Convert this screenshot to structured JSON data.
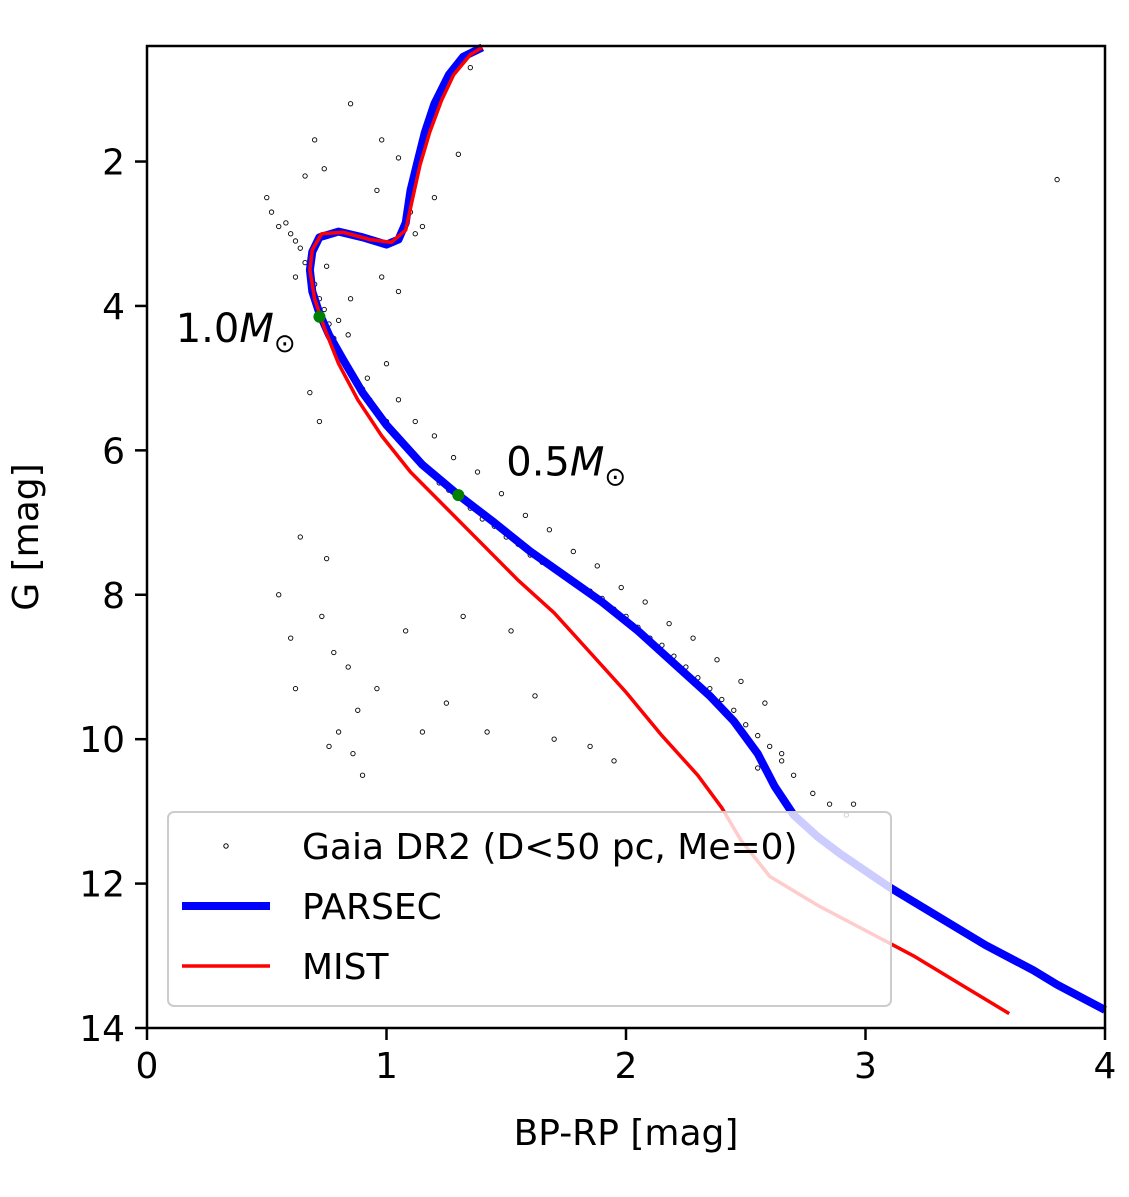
{
  "chart_data": {
    "type": "scatter",
    "title": "",
    "xlabel": "BP-RP [mag]",
    "ylabel": "G [mag]",
    "xlim": [
      0,
      4
    ],
    "ylim": [
      0.4,
      14
    ],
    "y_inverted": true,
    "x_ticks": [
      "0",
      "1",
      "2",
      "3",
      "4"
    ],
    "y_ticks": [
      "2",
      "4",
      "6",
      "8",
      "10",
      "12",
      "14"
    ],
    "grid": false,
    "legend_position": "bottom-left",
    "series": [
      {
        "name": "Gaia DR2 (D<50 pc, Me=0)",
        "kind": "scatter",
        "color": "#000000",
        "points": [
          [
            0.5,
            2.5
          ],
          [
            0.52,
            2.7
          ],
          [
            0.55,
            2.9
          ],
          [
            0.58,
            2.85
          ],
          [
            0.6,
            3.0
          ],
          [
            0.62,
            3.1
          ],
          [
            0.64,
            3.2
          ],
          [
            0.66,
            3.4
          ],
          [
            0.68,
            3.55
          ],
          [
            0.7,
            3.7
          ],
          [
            0.72,
            3.9
          ],
          [
            0.74,
            4.05
          ],
          [
            0.76,
            4.25
          ],
          [
            0.78,
            4.45
          ],
          [
            0.8,
            4.6
          ],
          [
            0.82,
            4.75
          ],
          [
            0.85,
            4.9
          ],
          [
            0.88,
            5.05
          ],
          [
            0.9,
            5.15
          ],
          [
            0.93,
            5.3
          ],
          [
            0.96,
            5.45
          ],
          [
            1.0,
            5.6
          ],
          [
            1.03,
            5.75
          ],
          [
            1.06,
            5.85
          ],
          [
            1.1,
            6.0
          ],
          [
            1.14,
            6.15
          ],
          [
            1.18,
            6.3
          ],
          [
            1.22,
            6.45
          ],
          [
            1.26,
            6.55
          ],
          [
            1.3,
            6.65
          ],
          [
            1.35,
            6.8
          ],
          [
            1.4,
            6.95
          ],
          [
            1.45,
            7.05
          ],
          [
            1.5,
            7.2
          ],
          [
            1.55,
            7.3
          ],
          [
            1.6,
            7.45
          ],
          [
            1.65,
            7.55
          ],
          [
            1.7,
            7.65
          ],
          [
            1.75,
            7.75
          ],
          [
            1.8,
            7.85
          ],
          [
            1.85,
            7.95
          ],
          [
            1.9,
            8.05
          ],
          [
            1.95,
            8.2
          ],
          [
            2.0,
            8.3
          ],
          [
            2.05,
            8.45
          ],
          [
            2.1,
            8.6
          ],
          [
            2.15,
            8.7
          ],
          [
            2.2,
            8.85
          ],
          [
            2.25,
            9.0
          ],
          [
            2.3,
            9.15
          ],
          [
            2.35,
            9.3
          ],
          [
            2.4,
            9.45
          ],
          [
            2.45,
            9.6
          ],
          [
            2.5,
            9.8
          ],
          [
            2.55,
            9.95
          ],
          [
            2.6,
            10.1
          ],
          [
            2.65,
            10.3
          ],
          [
            2.7,
            10.5
          ],
          [
            2.78,
            10.75
          ],
          [
            2.85,
            10.9
          ],
          [
            2.92,
            11.05
          ],
          [
            0.62,
            3.6
          ],
          [
            0.7,
            3.2
          ],
          [
            0.75,
            3.45
          ],
          [
            0.8,
            4.2
          ],
          [
            0.84,
            4.4
          ],
          [
            0.92,
            5.0
          ],
          [
            1.0,
            4.8
          ],
          [
            1.05,
            5.3
          ],
          [
            1.12,
            5.6
          ],
          [
            1.2,
            5.8
          ],
          [
            1.28,
            6.1
          ],
          [
            1.38,
            6.3
          ],
          [
            1.48,
            6.6
          ],
          [
            1.58,
            6.9
          ],
          [
            1.68,
            7.1
          ],
          [
            1.78,
            7.4
          ],
          [
            1.88,
            7.6
          ],
          [
            1.98,
            7.9
          ],
          [
            2.08,
            8.1
          ],
          [
            2.18,
            8.4
          ],
          [
            2.28,
            8.6
          ],
          [
            2.38,
            8.9
          ],
          [
            2.48,
            9.2
          ],
          [
            2.58,
            9.5
          ],
          [
            0.68,
            5.2
          ],
          [
            0.72,
            5.6
          ],
          [
            0.75,
            7.5
          ],
          [
            0.73,
            8.3
          ],
          [
            0.78,
            8.8
          ],
          [
            0.84,
            9.0
          ],
          [
            0.88,
            9.6
          ],
          [
            0.76,
            10.1
          ],
          [
            0.86,
            10.2
          ],
          [
            0.96,
            9.3
          ],
          [
            1.08,
            8.5
          ],
          [
            1.15,
            9.9
          ],
          [
            1.25,
            9.5
          ],
          [
            1.32,
            8.3
          ],
          [
            1.42,
            9.9
          ],
          [
            1.52,
            8.5
          ],
          [
            1.62,
            9.4
          ],
          [
            1.7,
            10.0
          ],
          [
            1.85,
            10.1
          ],
          [
            1.95,
            10.3
          ],
          [
            0.6,
            8.6
          ],
          [
            0.62,
            9.3
          ],
          [
            0.64,
            7.2
          ],
          [
            0.55,
            8.0
          ],
          [
            0.8,
            9.9
          ],
          [
            0.9,
            10.5
          ],
          [
            0.85,
            1.2
          ],
          [
            0.98,
            1.7
          ],
          [
            1.05,
            1.95
          ],
          [
            0.7,
            1.7
          ],
          [
            0.66,
            2.2
          ],
          [
            0.74,
            2.1
          ],
          [
            0.96,
            2.4
          ],
          [
            1.1,
            2.7
          ],
          [
            1.15,
            2.9
          ],
          [
            1.2,
            2.5
          ],
          [
            1.3,
            1.9
          ],
          [
            0.85,
            3.9
          ],
          [
            0.98,
            3.6
          ],
          [
            1.05,
            3.8
          ],
          [
            1.12,
            3.0
          ],
          [
            1.35,
            0.7
          ],
          [
            3.8,
            2.25
          ],
          [
            2.95,
            10.9
          ],
          [
            2.65,
            10.2
          ],
          [
            2.55,
            10.4
          ]
        ]
      },
      {
        "name": "PARSEC",
        "kind": "line",
        "color": "#0000ff",
        "points": [
          [
            4.0,
            13.75
          ],
          [
            3.8,
            13.4
          ],
          [
            3.7,
            13.2
          ],
          [
            3.5,
            12.85
          ],
          [
            3.3,
            12.45
          ],
          [
            3.1,
            12.05
          ],
          [
            2.9,
            11.6
          ],
          [
            2.8,
            11.35
          ],
          [
            2.7,
            11.05
          ],
          [
            2.62,
            10.65
          ],
          [
            2.55,
            10.2
          ],
          [
            2.45,
            9.75
          ],
          [
            2.35,
            9.4
          ],
          [
            2.2,
            8.95
          ],
          [
            2.05,
            8.5
          ],
          [
            1.9,
            8.1
          ],
          [
            1.75,
            7.75
          ],
          [
            1.6,
            7.4
          ],
          [
            1.45,
            7.0
          ],
          [
            1.3,
            6.62
          ],
          [
            1.15,
            6.2
          ],
          [
            1.0,
            5.65
          ],
          [
            0.9,
            5.2
          ],
          [
            0.82,
            4.75
          ],
          [
            0.76,
            4.4
          ],
          [
            0.72,
            4.1
          ],
          [
            0.69,
            3.8
          ],
          [
            0.68,
            3.5
          ],
          [
            0.69,
            3.25
          ],
          [
            0.72,
            3.05
          ],
          [
            0.8,
            2.97
          ],
          [
            0.9,
            3.05
          ],
          [
            1.0,
            3.15
          ],
          [
            1.05,
            3.08
          ],
          [
            1.08,
            2.85
          ],
          [
            1.1,
            2.4
          ],
          [
            1.13,
            2.0
          ],
          [
            1.16,
            1.6
          ],
          [
            1.2,
            1.2
          ],
          [
            1.26,
            0.8
          ],
          [
            1.32,
            0.55
          ],
          [
            1.4,
            0.42
          ]
        ]
      },
      {
        "name": "MIST",
        "kind": "line",
        "color": "#ff0000",
        "points": [
          [
            3.6,
            13.8
          ],
          [
            3.4,
            13.4
          ],
          [
            3.2,
            13.0
          ],
          [
            3.0,
            12.65
          ],
          [
            2.8,
            12.3
          ],
          [
            2.6,
            11.9
          ],
          [
            2.48,
            11.4
          ],
          [
            2.4,
            10.95
          ],
          [
            2.3,
            10.5
          ],
          [
            2.15,
            9.95
          ],
          [
            2.0,
            9.35
          ],
          [
            1.85,
            8.8
          ],
          [
            1.7,
            8.25
          ],
          [
            1.55,
            7.8
          ],
          [
            1.4,
            7.3
          ],
          [
            1.25,
            6.8
          ],
          [
            1.1,
            6.3
          ],
          [
            0.98,
            5.8
          ],
          [
            0.88,
            5.3
          ],
          [
            0.8,
            4.8
          ],
          [
            0.74,
            4.3
          ],
          [
            0.7,
            3.9
          ],
          [
            0.68,
            3.5
          ],
          [
            0.69,
            3.22
          ],
          [
            0.73,
            3.0
          ],
          [
            0.82,
            2.98
          ],
          [
            0.93,
            3.08
          ],
          [
            1.02,
            3.12
          ],
          [
            1.08,
            2.95
          ],
          [
            1.11,
            2.5
          ],
          [
            1.14,
            2.05
          ],
          [
            1.18,
            1.6
          ],
          [
            1.23,
            1.15
          ],
          [
            1.28,
            0.8
          ],
          [
            1.35,
            0.52
          ],
          [
            1.4,
            0.42
          ]
        ]
      }
    ],
    "markers": [
      {
        "x": 0.72,
        "y": 4.15,
        "color": "#008000"
      },
      {
        "x": 1.3,
        "y": 6.62,
        "color": "#008000"
      }
    ],
    "annotations": [
      {
        "text": "1.0",
        "sub": "M",
        "sym": "⊙",
        "x": 0.12,
        "y": 4.5
      },
      {
        "text": "0.5",
        "sub": "M",
        "sym": "⊙",
        "x": 1.5,
        "y": 6.35
      }
    ]
  }
}
